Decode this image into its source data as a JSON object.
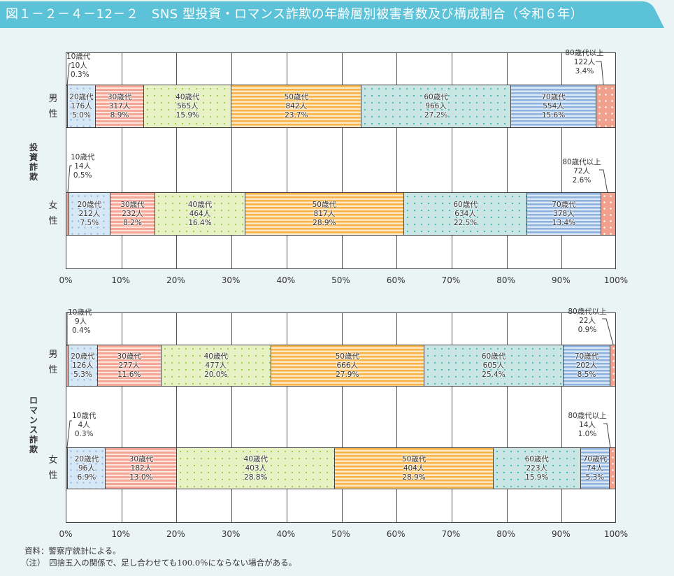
{
  "title": "図１－２－４－12－２　SNS 型投資・ロマンス詐欺の年齢層別被害者数及び構成割合（令和６年）",
  "colors": {
    "title_bg": "#5bc2d8",
    "10s": "#f3a79a",
    "20s": "#d6e7f6",
    "30s": "#f4a697",
    "40s": "#e7f1c4",
    "50s": "#f7b346",
    "60s": "#c9e6e5",
    "70s": "#8db2de",
    "80s": "#f2a08e"
  },
  "axis": {
    "ticks": [
      "0%",
      "10%",
      "20%",
      "30%",
      "40%",
      "50%",
      "60%",
      "70%",
      "80%",
      "90%",
      "100%"
    ]
  },
  "sex_labels": {
    "male": [
      "男",
      "性"
    ],
    "female": [
      "女",
      "性"
    ]
  },
  "charts": [
    {
      "group_label": [
        "投",
        "資",
        "詐",
        "欺"
      ],
      "male": {
        "segments": [
          {
            "age": "10歳代",
            "count": "10人",
            "pct": "0.3%",
            "value": 0.3
          },
          {
            "age": "20歳代",
            "count": "176人",
            "pct": "5.0%",
            "value": 5.0
          },
          {
            "age": "30歳代",
            "count": "317人",
            "pct": "8.9%",
            "value": 8.9
          },
          {
            "age": "40歳代",
            "count": "565人",
            "pct": "15.9%",
            "value": 15.9
          },
          {
            "age": "50歳代",
            "count": "842人",
            "pct": "23.7%",
            "value": 23.7
          },
          {
            "age": "60歳代",
            "count": "966人",
            "pct": "27.2%",
            "value": 27.2
          },
          {
            "age": "70歳代",
            "count": "554人",
            "pct": "15.6%",
            "value": 15.6
          },
          {
            "age": "80歳代以上",
            "count": "122人",
            "pct": "3.4%",
            "value": 3.4
          }
        ]
      },
      "female": {
        "segments": [
          {
            "age": "10歳代",
            "count": "14人",
            "pct": "0.5%",
            "value": 0.5
          },
          {
            "age": "20歳代",
            "count": "212人",
            "pct": "7.5%",
            "value": 7.5
          },
          {
            "age": "30歳代",
            "count": "232人",
            "pct": "8.2%",
            "value": 8.2
          },
          {
            "age": "40歳代",
            "count": "464人",
            "pct": "16.4%",
            "value": 16.4
          },
          {
            "age": "50歳代",
            "count": "817人",
            "pct": "28.9%",
            "value": 28.9
          },
          {
            "age": "60歳代",
            "count": "634人",
            "pct": "22.5%",
            "value": 22.5
          },
          {
            "age": "70歳代",
            "count": "378人",
            "pct": "13.4%",
            "value": 13.4
          },
          {
            "age": "80歳代以上",
            "count": "72人",
            "pct": "2.6%",
            "value": 2.6
          }
        ]
      }
    },
    {
      "group_label": [
        "ロ",
        "マ",
        "ン",
        "ス",
        "詐",
        "欺"
      ],
      "male": {
        "segments": [
          {
            "age": "10歳代",
            "count": "9人",
            "pct": "0.4%",
            "value": 0.4
          },
          {
            "age": "20歳代",
            "count": "126人",
            "pct": "5.3%",
            "value": 5.3
          },
          {
            "age": "30歳代",
            "count": "277人",
            "pct": "11.6%",
            "value": 11.6
          },
          {
            "age": "40歳代",
            "count": "477人",
            "pct": "20.0%",
            "value": 20.0
          },
          {
            "age": "50歳代",
            "count": "666人",
            "pct": "27.9%",
            "value": 27.9
          },
          {
            "age": "60歳代",
            "count": "605人",
            "pct": "25.4%",
            "value": 25.4
          },
          {
            "age": "70歳代",
            "count": "202人",
            "pct": "8.5%",
            "value": 8.5
          },
          {
            "age": "80歳代以上",
            "count": "22人",
            "pct": "0.9%",
            "value": 0.9
          }
        ]
      },
      "female": {
        "segments": [
          {
            "age": "10歳代",
            "count": "4人",
            "pct": "0.3%",
            "value": 0.3
          },
          {
            "age": "20歳代",
            "count": "96人",
            "pct": "6.9%",
            "value": 6.9
          },
          {
            "age": "30歳代",
            "count": "182人",
            "pct": "13.0%",
            "value": 13.0
          },
          {
            "age": "40歳代",
            "count": "403人",
            "pct": "28.8%",
            "value": 28.8
          },
          {
            "age": "50歳代",
            "count": "404人",
            "pct": "28.9%",
            "value": 28.9
          },
          {
            "age": "60歳代",
            "count": "223人",
            "pct": "15.9%",
            "value": 15.9
          },
          {
            "age": "70歳代",
            "count": "74人",
            "pct": "5.3%",
            "value": 5.3
          },
          {
            "age": "80歳代以上",
            "count": "14人",
            "pct": "1.0%",
            "value": 1.0
          }
        ]
      }
    }
  ],
  "footer": {
    "source": "資料：警察庁統計による。",
    "note": "（注）　四捨五入の関係で、足し合わせても100.0％にならない場合がある。"
  },
  "chart_data": [
    {
      "type": "bar",
      "orientation": "horizontal-stacked-100",
      "title": "SNS型投資詐欺 年齢層別被害者数及び構成割合（令和６年）",
      "categories": [
        "男性",
        "女性"
      ],
      "xlabel": "",
      "ylabel": "投資詐欺",
      "xlim": [
        0,
        100
      ],
      "series": [
        {
          "name": "10歳代",
          "values": [
            0.3,
            0.5
          ],
          "counts": [
            10,
            14
          ]
        },
        {
          "name": "20歳代",
          "values": [
            5.0,
            7.5
          ],
          "counts": [
            176,
            212
          ]
        },
        {
          "name": "30歳代",
          "values": [
            8.9,
            8.2
          ],
          "counts": [
            317,
            232
          ]
        },
        {
          "name": "40歳代",
          "values": [
            15.9,
            16.4
          ],
          "counts": [
            565,
            464
          ]
        },
        {
          "name": "50歳代",
          "values": [
            23.7,
            28.9
          ],
          "counts": [
            842,
            817
          ]
        },
        {
          "name": "60歳代",
          "values": [
            27.2,
            22.5
          ],
          "counts": [
            966,
            634
          ]
        },
        {
          "name": "70歳代",
          "values": [
            15.6,
            13.4
          ],
          "counts": [
            554,
            378
          ]
        },
        {
          "name": "80歳代以上",
          "values": [
            3.4,
            2.6
          ],
          "counts": [
            122,
            72
          ]
        }
      ],
      "grid": true
    },
    {
      "type": "bar",
      "orientation": "horizontal-stacked-100",
      "title": "ロマンス詐欺 年齢層別被害者数及び構成割合（令和６年）",
      "categories": [
        "男性",
        "女性"
      ],
      "xlabel": "",
      "ylabel": "ロマンス詐欺",
      "xlim": [
        0,
        100
      ],
      "series": [
        {
          "name": "10歳代",
          "values": [
            0.4,
            0.3
          ],
          "counts": [
            9,
            4
          ]
        },
        {
          "name": "20歳代",
          "values": [
            5.3,
            6.9
          ],
          "counts": [
            126,
            96
          ]
        },
        {
          "name": "30歳代",
          "values": [
            11.6,
            13.0
          ],
          "counts": [
            277,
            182
          ]
        },
        {
          "name": "40歳代",
          "values": [
            20.0,
            28.8
          ],
          "counts": [
            477,
            403
          ]
        },
        {
          "name": "50歳代",
          "values": [
            27.9,
            28.9
          ],
          "counts": [
            666,
            404
          ]
        },
        {
          "name": "60歳代",
          "values": [
            25.4,
            15.9
          ],
          "counts": [
            605,
            223
          ]
        },
        {
          "name": "70歳代",
          "values": [
            8.5,
            5.3
          ],
          "counts": [
            202,
            74
          ]
        },
        {
          "name": "80歳代以上",
          "values": [
            0.9,
            1.0
          ],
          "counts": [
            22,
            14
          ]
        }
      ],
      "grid": true
    }
  ]
}
